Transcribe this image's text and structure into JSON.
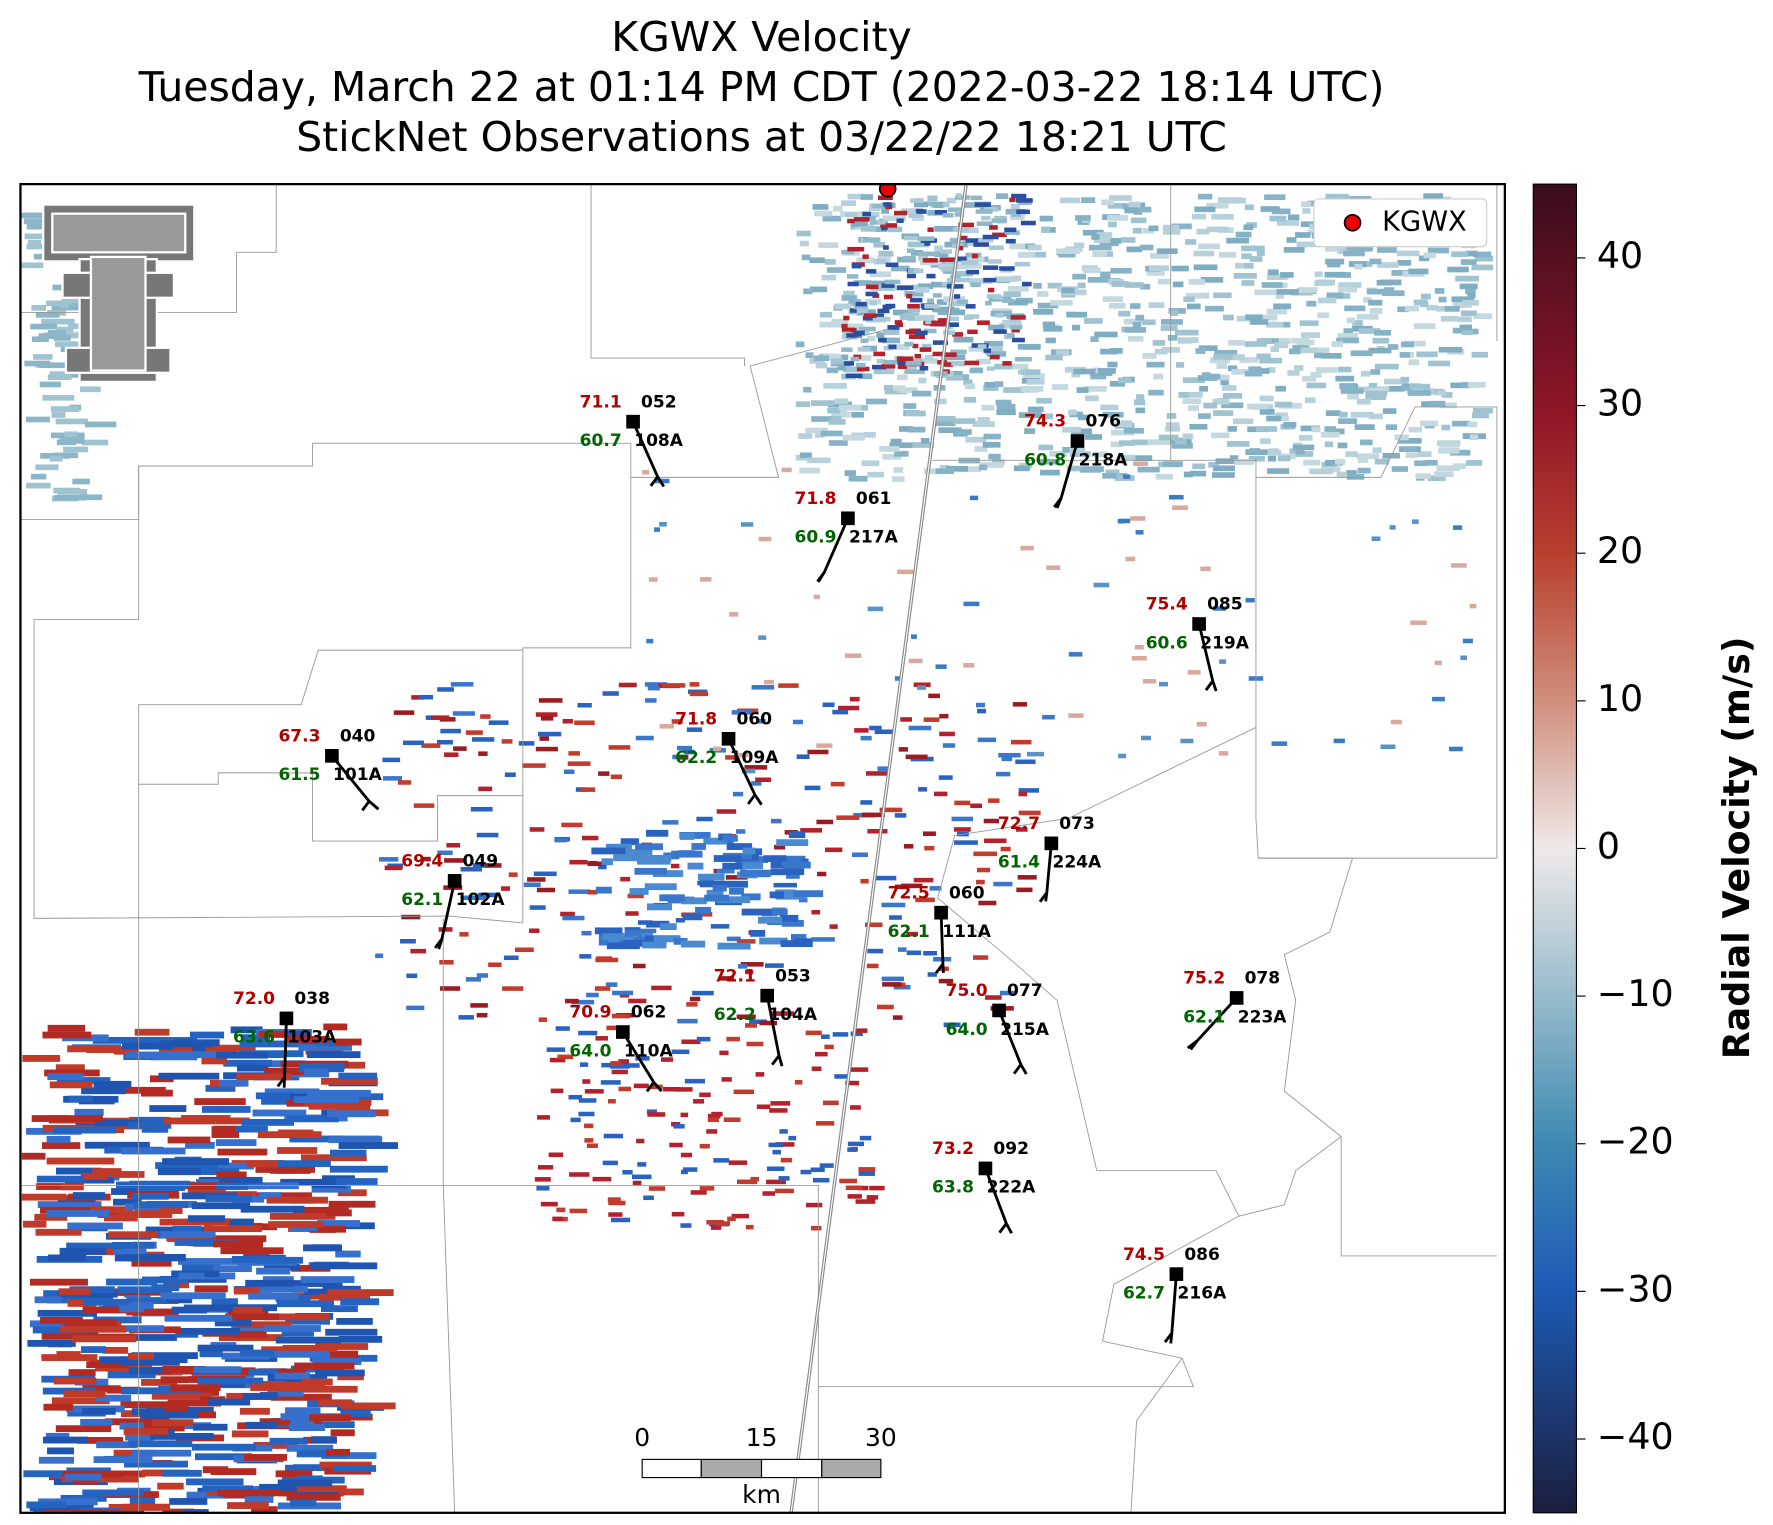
{
  "header": {
    "title": "KGWX Velocity",
    "subtitle": "Tuesday, March 22 at 01:14 PM CDT (2022-03-22 18:14 UTC)",
    "observations_time": "StickNet Observations at 03/22/22 18:21 UTC"
  },
  "legend": {
    "label": "KGWX"
  },
  "colorbar": {
    "label": "Radial Velocity (m/s)",
    "lim": [
      -45,
      45
    ],
    "ticks": [
      {
        "value": -40,
        "label": "−40"
      },
      {
        "value": -30,
        "label": "−30"
      },
      {
        "value": -20,
        "label": "−20"
      },
      {
        "value": -10,
        "label": "−10"
      },
      0,
      10,
      20,
      30,
      40
    ]
  },
  "scale_bar": {
    "ticks": [
      0,
      15,
      30
    ],
    "unit": "km"
  },
  "stations": [
    {
      "id": "108A",
      "temp": "71.1",
      "dewpoint": "60.7",
      "direction": "052"
    },
    {
      "id": "217A",
      "temp": "71.8",
      "dewpoint": "60.9",
      "direction": "061"
    },
    {
      "id": "218A",
      "temp": "74.3",
      "dewpoint": "60.8",
      "direction": "076"
    },
    {
      "id": "219A",
      "temp": "75.4",
      "dewpoint": "60.6",
      "direction": "085"
    },
    {
      "id": "101A",
      "temp": "67.3",
      "dewpoint": "61.5",
      "direction": "040"
    },
    {
      "id": "109A",
      "temp": "71.8",
      "dewpoint": "62.2",
      "direction": "060"
    },
    {
      "id": "102A",
      "temp": "69.4",
      "dewpoint": "62.1",
      "direction": "049"
    },
    {
      "id": "224A",
      "temp": "72.7",
      "dewpoint": "61.4",
      "direction": "073"
    },
    {
      "id": "111A",
      "temp": "72.5",
      "dewpoint": "62.1",
      "direction": "060"
    },
    {
      "id": "103A",
      "temp": "72.0",
      "dewpoint": "63.6",
      "direction": "038"
    },
    {
      "id": "104A",
      "temp": "72.1",
      "dewpoint": "62.2",
      "direction": "053"
    },
    {
      "id": "110A",
      "temp": "70.9",
      "dewpoint": "64.0",
      "direction": "062"
    },
    {
      "id": "215A",
      "temp": "75.0",
      "dewpoint": "64.0",
      "direction": "077"
    },
    {
      "id": "223A",
      "temp": "75.2",
      "dewpoint": "62.1",
      "direction": "078"
    },
    {
      "id": "222A",
      "temp": "73.2",
      "dewpoint": "63.8",
      "direction": "092"
    },
    {
      "id": "216A",
      "temp": "74.5",
      "dewpoint": "62.7",
      "direction": "086"
    }
  ]
}
